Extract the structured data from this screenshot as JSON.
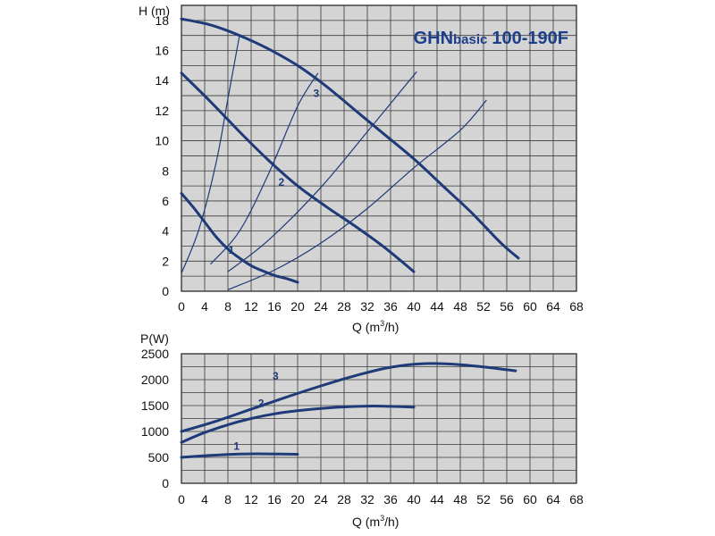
{
  "chart_data": [
    {
      "type": "line",
      "title_prefix": "GHN",
      "title_small": "basic",
      "title_suffix": "100-190F",
      "ylabel_left": "H (",
      "ylabel_unit": "m",
      "ylabel_right": ")",
      "xlabel_left": "Q (m",
      "xlabel_sup": "3",
      "xlabel_right": "/h)",
      "xlim": [
        0,
        68
      ],
      "ylim": [
        0,
        19
      ],
      "grid": true,
      "x_ticks": [
        "0",
        "4",
        "8",
        "12",
        "16",
        "20",
        "24",
        "28",
        "32",
        "36",
        "40",
        "44",
        "48",
        "52",
        "56",
        "60",
        "64",
        "68"
      ],
      "y_ticks": [
        "0",
        "2",
        "4",
        "6",
        "8",
        "10",
        "12",
        "14",
        "16",
        "18"
      ],
      "colors": {
        "curve": "#1f3a78",
        "system": "#1f3a78",
        "background": "#d4d4d4",
        "grid": "#3a3a3a"
      },
      "series": [
        {
          "name": "1",
          "label_at": [
            8.6,
            2.5
          ],
          "points": [
            [
              0,
              6.5
            ],
            [
              2,
              5.6
            ],
            [
              4,
              4.6
            ],
            [
              6,
              3.6
            ],
            [
              8,
              2.8
            ],
            [
              10,
              2.2
            ],
            [
              12,
              1.7
            ],
            [
              14,
              1.35
            ],
            [
              16,
              1.05
            ],
            [
              18,
              0.85
            ],
            [
              20,
              0.6
            ]
          ]
        },
        {
          "name": "2",
          "label_at": [
            17.2,
            7.0
          ],
          "points": [
            [
              0,
              14.5
            ],
            [
              5,
              12.6
            ],
            [
              10,
              10.6
            ],
            [
              15,
              8.7
            ],
            [
              20,
              7.0
            ],
            [
              25,
              5.6
            ],
            [
              30,
              4.3
            ],
            [
              35,
              2.9
            ],
            [
              40,
              1.3
            ]
          ]
        },
        {
          "name": "3",
          "label_at": [
            23.2,
            12.9
          ],
          "points": [
            [
              0,
              18.1
            ],
            [
              5,
              17.7
            ],
            [
              10,
              17.0
            ],
            [
              15,
              16.1
            ],
            [
              20,
              15.0
            ],
            [
              25,
              13.6
            ],
            [
              30,
              12.0
            ],
            [
              35,
              10.4
            ],
            [
              40,
              8.8
            ],
            [
              45,
              7.0
            ],
            [
              50,
              5.2
            ],
            [
              55,
              3.2
            ],
            [
              58,
              2.2
            ]
          ]
        }
      ],
      "system_curves": [
        [
          [
            0,
            1.2
          ],
          [
            3,
            4.1
          ],
          [
            6,
            8.6
          ],
          [
            8,
            12.8
          ],
          [
            10,
            17.0
          ]
        ],
        [
          [
            5,
            1.8
          ],
          [
            10,
            4.0
          ],
          [
            15,
            7.8
          ],
          [
            20,
            12.3
          ],
          [
            23.5,
            14.5
          ]
        ],
        [
          [
            8,
            1.3
          ],
          [
            15,
            3.4
          ],
          [
            24,
            6.9
          ],
          [
            32,
            10.6
          ],
          [
            40.5,
            14.6
          ]
        ],
        [
          [
            8,
            0.1
          ],
          [
            16,
            1.4
          ],
          [
            24,
            3.2
          ],
          [
            32,
            5.5
          ],
          [
            40,
            8.2
          ],
          [
            48,
            10.7
          ],
          [
            52.5,
            12.7
          ]
        ]
      ]
    },
    {
      "type": "line",
      "ylabel": "P(W)",
      "xlabel_left": "Q (m",
      "xlabel_sup": "3",
      "xlabel_right": "/h)",
      "xlim": [
        0,
        68
      ],
      "ylim": [
        0,
        2500
      ],
      "grid": true,
      "x_ticks": [
        "0",
        "4",
        "8",
        "12",
        "16",
        "20",
        "24",
        "28",
        "32",
        "36",
        "40",
        "44",
        "48",
        "52",
        "56",
        "60",
        "64",
        "68"
      ],
      "y_ticks": [
        "0",
        "500",
        "1000",
        "1500",
        "2000",
        "2500"
      ],
      "colors": {
        "curve": "#1f3a78",
        "background": "#d4d4d4",
        "grid": "#3a3a3a"
      },
      "series": [
        {
          "name": "1",
          "label_at": [
            9.5,
            650
          ],
          "points": [
            [
              0,
              500
            ],
            [
              5,
              540
            ],
            [
              10,
              565
            ],
            [
              15,
              568
            ],
            [
              20,
              560
            ]
          ]
        },
        {
          "name": "2",
          "label_at": [
            13.7,
            1470
          ],
          "points": [
            [
              0,
              790
            ],
            [
              4,
              980
            ],
            [
              8,
              1130
            ],
            [
              12,
              1250
            ],
            [
              16,
              1340
            ],
            [
              20,
              1400
            ],
            [
              26,
              1460
            ],
            [
              32,
              1490
            ],
            [
              36,
              1485
            ],
            [
              40,
              1470
            ]
          ]
        },
        {
          "name": "3",
          "label_at": [
            16.2,
            2000
          ],
          "points": [
            [
              0,
              1000
            ],
            [
              6,
              1200
            ],
            [
              12,
              1430
            ],
            [
              18,
              1660
            ],
            [
              24,
              1880
            ],
            [
              30,
              2080
            ],
            [
              36,
              2240
            ],
            [
              42,
              2310
            ],
            [
              48,
              2290
            ],
            [
              54,
              2220
            ],
            [
              57.5,
              2170
            ]
          ]
        }
      ]
    }
  ]
}
